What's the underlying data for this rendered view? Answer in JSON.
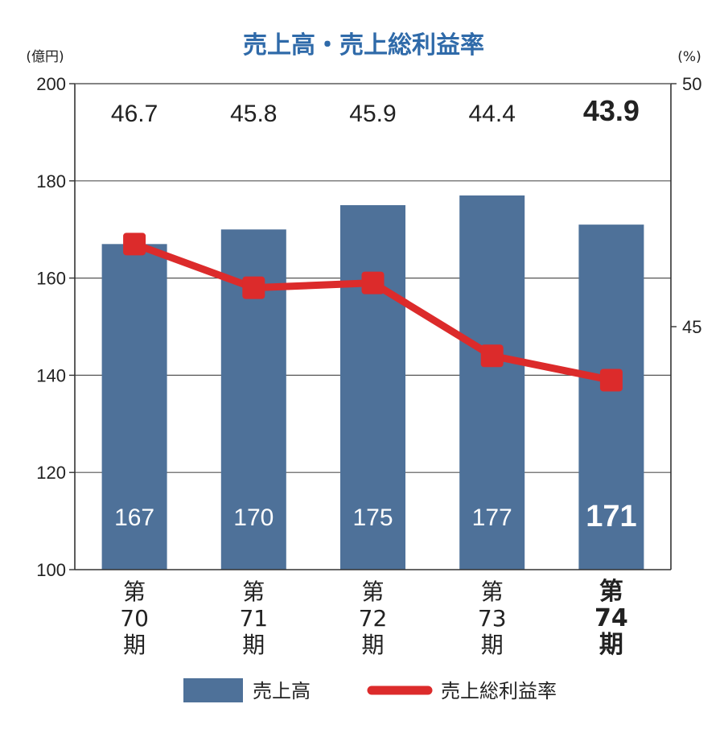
{
  "chart_data": {
    "type": "bar",
    "title": "売上高・売上総利益率",
    "left_unit": "(億円)",
    "right_unit": "(%)",
    "categories": [
      [
        "第",
        "70",
        "期"
      ],
      [
        "第",
        "71",
        "期"
      ],
      [
        "第",
        "72",
        "期"
      ],
      [
        "第",
        "73",
        "期"
      ],
      [
        "第",
        "74",
        "期"
      ]
    ],
    "highlight_index": 4,
    "series": [
      {
        "name": "売上高",
        "type": "bar",
        "axis": "left",
        "values": [
          167,
          170,
          175,
          177,
          171
        ],
        "labels": [
          "167",
          "170",
          "175",
          "177",
          "171"
        ],
        "color": "#4e7199"
      },
      {
        "name": "売上総利益率",
        "type": "line",
        "axis": "right",
        "values": [
          46.7,
          45.8,
          45.9,
          44.4,
          43.9
        ],
        "labels": [
          "46.7",
          "45.8",
          "45.9",
          "44.4",
          "43.9"
        ],
        "color": "#dc2b2b"
      }
    ],
    "left_axis": {
      "min": 100,
      "max": 200,
      "ticks": [
        "100",
        "120",
        "140",
        "160",
        "180",
        "200"
      ]
    },
    "right_axis": {
      "min": 40,
      "max": 50,
      "ticks": [
        "45",
        "50"
      ]
    },
    "grid": true,
    "legend_placement": "bottom"
  }
}
